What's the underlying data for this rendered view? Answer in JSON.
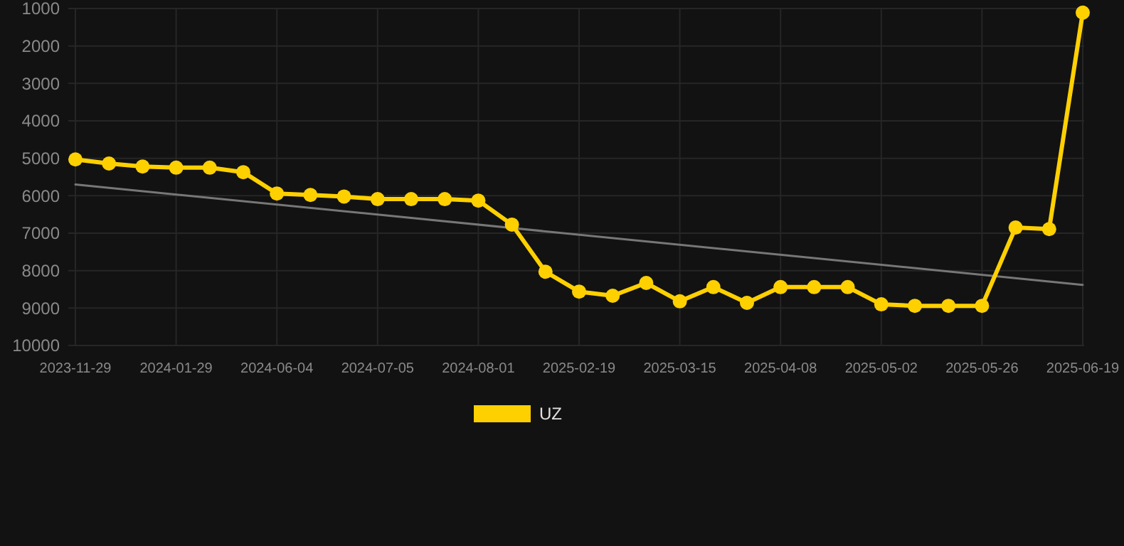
{
  "chart_data": {
    "type": "line",
    "categories": [
      "2023-11-29",
      null,
      null,
      "2024-01-29",
      null,
      null,
      "2024-06-04",
      null,
      null,
      "2024-07-05",
      null,
      null,
      "2024-08-01",
      null,
      null,
      "2025-02-19",
      null,
      null,
      "2025-03-15",
      null,
      null,
      "2025-04-08",
      null,
      null,
      "2025-05-02",
      null,
      null,
      "2025-05-26",
      null,
      null,
      "2025-06-19"
    ],
    "series": [
      {
        "name": "UZ",
        "color": "#ffd000",
        "marker": "circle",
        "values": [
          5030,
          5140,
          5220,
          5250,
          5250,
          5370,
          5940,
          5980,
          6020,
          6090,
          6090,
          6090,
          6130,
          6770,
          8030,
          8560,
          8670,
          8330,
          8820,
          8440,
          8860,
          8440,
          8440,
          8440,
          8900,
          8940,
          8940,
          8940,
          6850,
          6890,
          1110
        ]
      },
      {
        "color": "#777777",
        "marker": "none",
        "values": [
          5700,
          null,
          null,
          null,
          null,
          null,
          null,
          null,
          null,
          null,
          null,
          null,
          null,
          null,
          null,
          null,
          null,
          null,
          null,
          null,
          null,
          null,
          null,
          null,
          null,
          null,
          null,
          null,
          null,
          null,
          8380
        ]
      }
    ],
    "ylim": [
      10000,
      1000
    ],
    "yticks": [
      1000,
      2000,
      3000,
      4000,
      5000,
      6000,
      7000,
      8000,
      9000,
      10000
    ],
    "grid": true,
    "legend": "bottom"
  }
}
